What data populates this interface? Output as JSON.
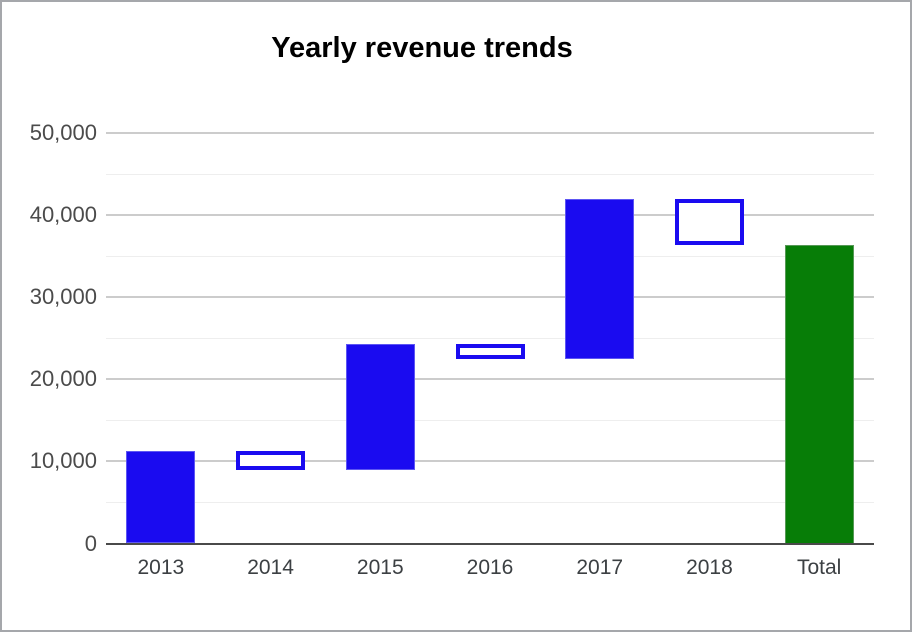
{
  "chart_data": {
    "type": "waterfall",
    "title": "Yearly revenue trends",
    "categories": [
      "2013",
      "2014",
      "2015",
      "2016",
      "2017",
      "2018",
      "Total"
    ],
    "steps": [
      {
        "label": "2013",
        "start": 0,
        "end": 11300,
        "kind": "rise"
      },
      {
        "label": "2014",
        "start": 11300,
        "end": 9000,
        "kind": "fall"
      },
      {
        "label": "2015",
        "start": 9000,
        "end": 24300,
        "kind": "rise"
      },
      {
        "label": "2016",
        "start": 24300,
        "end": 22500,
        "kind": "fall"
      },
      {
        "label": "2017",
        "start": 22500,
        "end": 42000,
        "kind": "rise"
      },
      {
        "label": "2018",
        "start": 42000,
        "end": 36300,
        "kind": "fall"
      },
      {
        "label": "Total",
        "start": 0,
        "end": 36300,
        "kind": "total"
      }
    ],
    "y_axis": {
      "min": 0,
      "max_visible_tick": 50000,
      "scale_max": 52800,
      "major_ticks": [
        {
          "value": 0,
          "label": "0"
        },
        {
          "value": 10000,
          "label": "10,000"
        },
        {
          "value": 20000,
          "label": "20,000"
        },
        {
          "value": 30000,
          "label": "30,000"
        },
        {
          "value": 40000,
          "label": "40,000"
        },
        {
          "value": 50000,
          "label": "50,000"
        }
      ],
      "minor_tick_values": [
        5000,
        15000,
        25000,
        35000,
        45000
      ],
      "grid": true
    },
    "legend": "none",
    "colors": {
      "rise_fill": "#1a0bf0",
      "fall_fill": "#ffffff",
      "fall_border": "#1a0bf0",
      "total_fill": "#077d07",
      "major_grid": "#cccccc",
      "minor_grid": "#eeeeee",
      "baseline": "#4a4a4a",
      "title_text": "#000000",
      "y_label_text": "#4b4b4b",
      "x_label_text": "#3c4043",
      "frame_border": "#a5a7ab"
    }
  }
}
